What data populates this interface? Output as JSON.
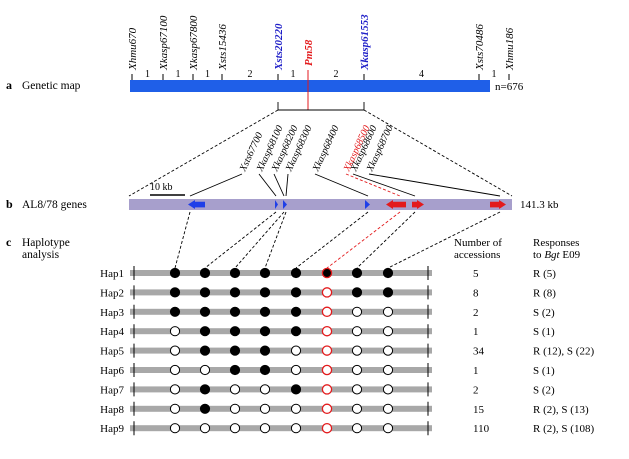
{
  "panel_a": {
    "letter": "a",
    "title": "Genetic map",
    "markers": [
      {
        "name": "Xhmu670",
        "color": "#000000",
        "bold": false
      },
      {
        "name": "Xkasp67100",
        "color": "#000000",
        "bold": false
      },
      {
        "name": "Xkasp67800",
        "color": "#000000",
        "bold": false
      },
      {
        "name": "Xsts15436",
        "color": "#000000",
        "bold": false
      },
      {
        "name": "Xsts20220",
        "color": "#1f1fc8",
        "bold": true
      },
      {
        "name": "Pm58",
        "color": "#e31a1c",
        "bold": true
      },
      {
        "name": "Xkasp61553",
        "color": "#1f1fc8",
        "bold": true
      },
      {
        "name": "Xsts70486",
        "color": "#000000",
        "bold": false
      },
      {
        "name": "Xhmu186",
        "color": "#000000",
        "bold": false
      }
    ],
    "intervals": [
      "1",
      "1",
      "1",
      "2",
      "1",
      "2",
      "4",
      "1"
    ],
    "population": "n=676",
    "bar_color": "#1f5fe8"
  },
  "panel_b": {
    "letter": "b",
    "title": "AL8/78 genes",
    "scale_label": "10 kb",
    "length_label": "141.3 kb",
    "markers": [
      {
        "name": "Xsts67700",
        "color": "#000000"
      },
      {
        "name": "Xkasp68100",
        "color": "#000000"
      },
      {
        "name": "Xkasp68200",
        "color": "#000000"
      },
      {
        "name": "Xkasp68300",
        "color": "#000000"
      },
      {
        "name": "Xkasp68400",
        "color": "#000000"
      },
      {
        "name": "Xkasp68500",
        "color": "#e31a1c"
      },
      {
        "name": "Xkasp68600",
        "color": "#000000"
      },
      {
        "name": "Xkasp68700",
        "color": "#000000"
      }
    ],
    "bar_color": "#a79fcc"
  },
  "panel_c": {
    "letter": "c",
    "title_line1": "Haplotype",
    "title_line2": "analysis",
    "col_accessions_line1": "Number of",
    "col_accessions_line2": "accessions",
    "col_response_line1": "Responses",
    "col_response_line2_prefix": "to ",
    "col_response_line2_italic": "Bgt",
    "col_response_line2_suffix": " E09",
    "rows": [
      {
        "name": "Hap1",
        "alleles": [
          1,
          1,
          1,
          1,
          1,
          1,
          1,
          1
        ],
        "count": "5",
        "response": "R (5)"
      },
      {
        "name": "Hap2",
        "alleles": [
          1,
          1,
          1,
          1,
          1,
          0,
          1,
          1
        ],
        "count": "8",
        "response": "R (8)"
      },
      {
        "name": "Hap3",
        "alleles": [
          1,
          1,
          1,
          1,
          1,
          0,
          0,
          0
        ],
        "count": "2",
        "response": "S (2)"
      },
      {
        "name": "Hap4",
        "alleles": [
          0,
          1,
          1,
          1,
          1,
          0,
          0,
          0
        ],
        "count": "1",
        "response": "S (1)"
      },
      {
        "name": "Hap5",
        "alleles": [
          0,
          1,
          1,
          1,
          0,
          0,
          0,
          0
        ],
        "count": "34",
        "response": "R (12), S (22)"
      },
      {
        "name": "Hap6",
        "alleles": [
          0,
          0,
          1,
          1,
          0,
          0,
          0,
          0
        ],
        "count": "1",
        "response": "S (1)"
      },
      {
        "name": "Hap7",
        "alleles": [
          0,
          1,
          0,
          0,
          1,
          0,
          0,
          0
        ],
        "count": "2",
        "response": "S (2)"
      },
      {
        "name": "Hap8",
        "alleles": [
          0,
          1,
          0,
          0,
          0,
          0,
          0,
          0
        ],
        "count": "15",
        "response": "R (2), S (13)"
      },
      {
        "name": "Hap9",
        "alleles": [
          0,
          0,
          0,
          0,
          0,
          0,
          0,
          0
        ],
        "count": "110",
        "response": "R (2), S (108)"
      }
    ],
    "bar_color": "#a8a8a8",
    "highlight_color": "#e31a1c"
  }
}
